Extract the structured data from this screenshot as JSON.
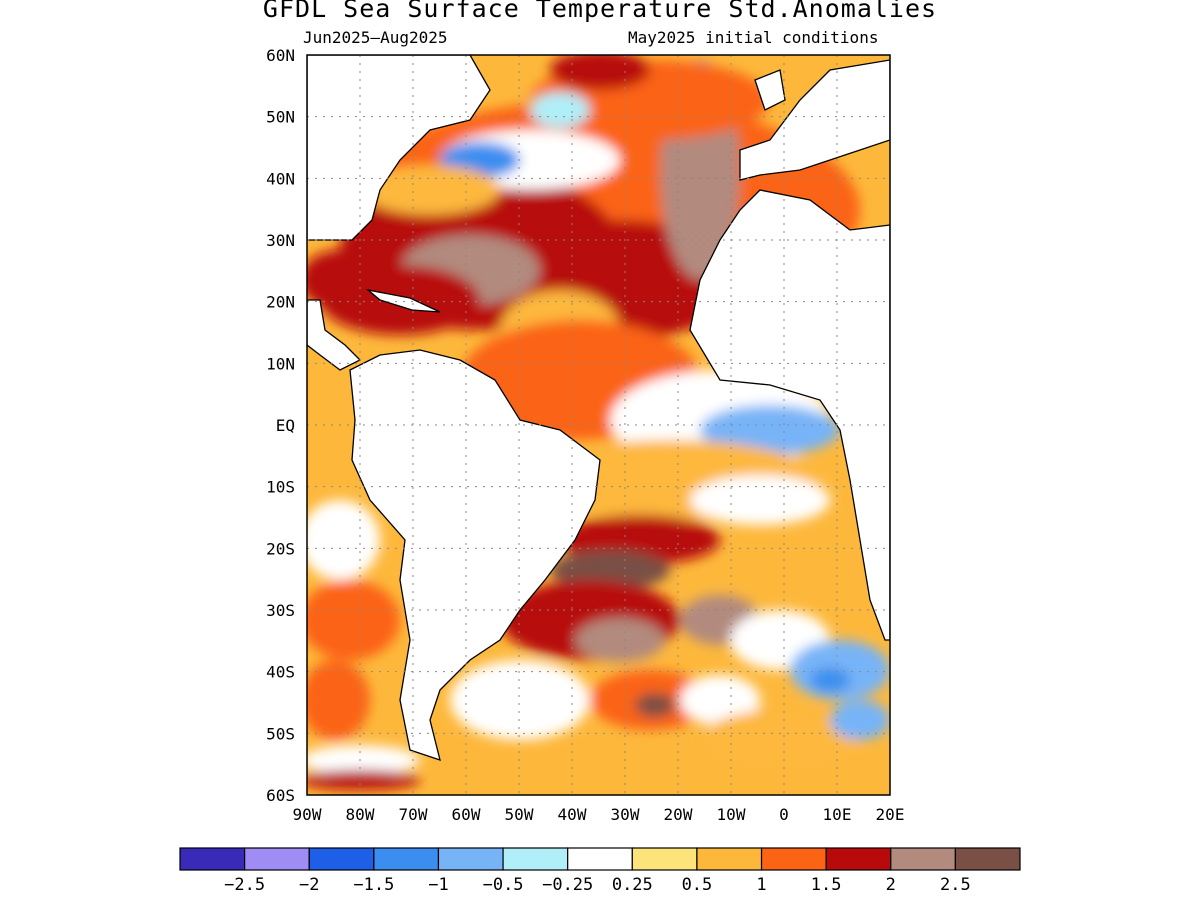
{
  "title": "GFDL Sea Surface Temperature Std.Anomalies",
  "period": "Jun2025–Aug2025",
  "init": "May2025 initial conditions",
  "lat_labels": [
    "60N",
    "50N",
    "40N",
    "30N",
    "20N",
    "10N",
    "EQ",
    "10S",
    "20S",
    "30S",
    "40S",
    "50S",
    "60S"
  ],
  "lon_labels": [
    "90W",
    "80W",
    "70W",
    "60W",
    "50W",
    "40W",
    "30W",
    "20W",
    "10W",
    "0",
    "10E",
    "20E"
  ],
  "lat_values": [
    60,
    50,
    40,
    30,
    20,
    10,
    0,
    -10,
    -20,
    -30,
    -40,
    -50,
    -60
  ],
  "lon_values": [
    -90,
    -80,
    -70,
    -60,
    -50,
    -40,
    -30,
    -20,
    -10,
    0,
    10,
    20
  ],
  "colorbar": {
    "colors": [
      "#3a2ab8",
      "#9f8cf5",
      "#1e5fe8",
      "#3b8ef0",
      "#77b4f7",
      "#b0eef8",
      "#ffffff",
      "#fde47a",
      "#fdb83c",
      "#fb6414",
      "#b80a0a",
      "#b28a7e",
      "#7a4f45"
    ],
    "labels": [
      "−2.5",
      "−2",
      "−1.5",
      "−1",
      "−0.5",
      "−0.25",
      "0.25",
      "0.5",
      "1",
      "1.5",
      "2",
      "2.5"
    ]
  }
}
